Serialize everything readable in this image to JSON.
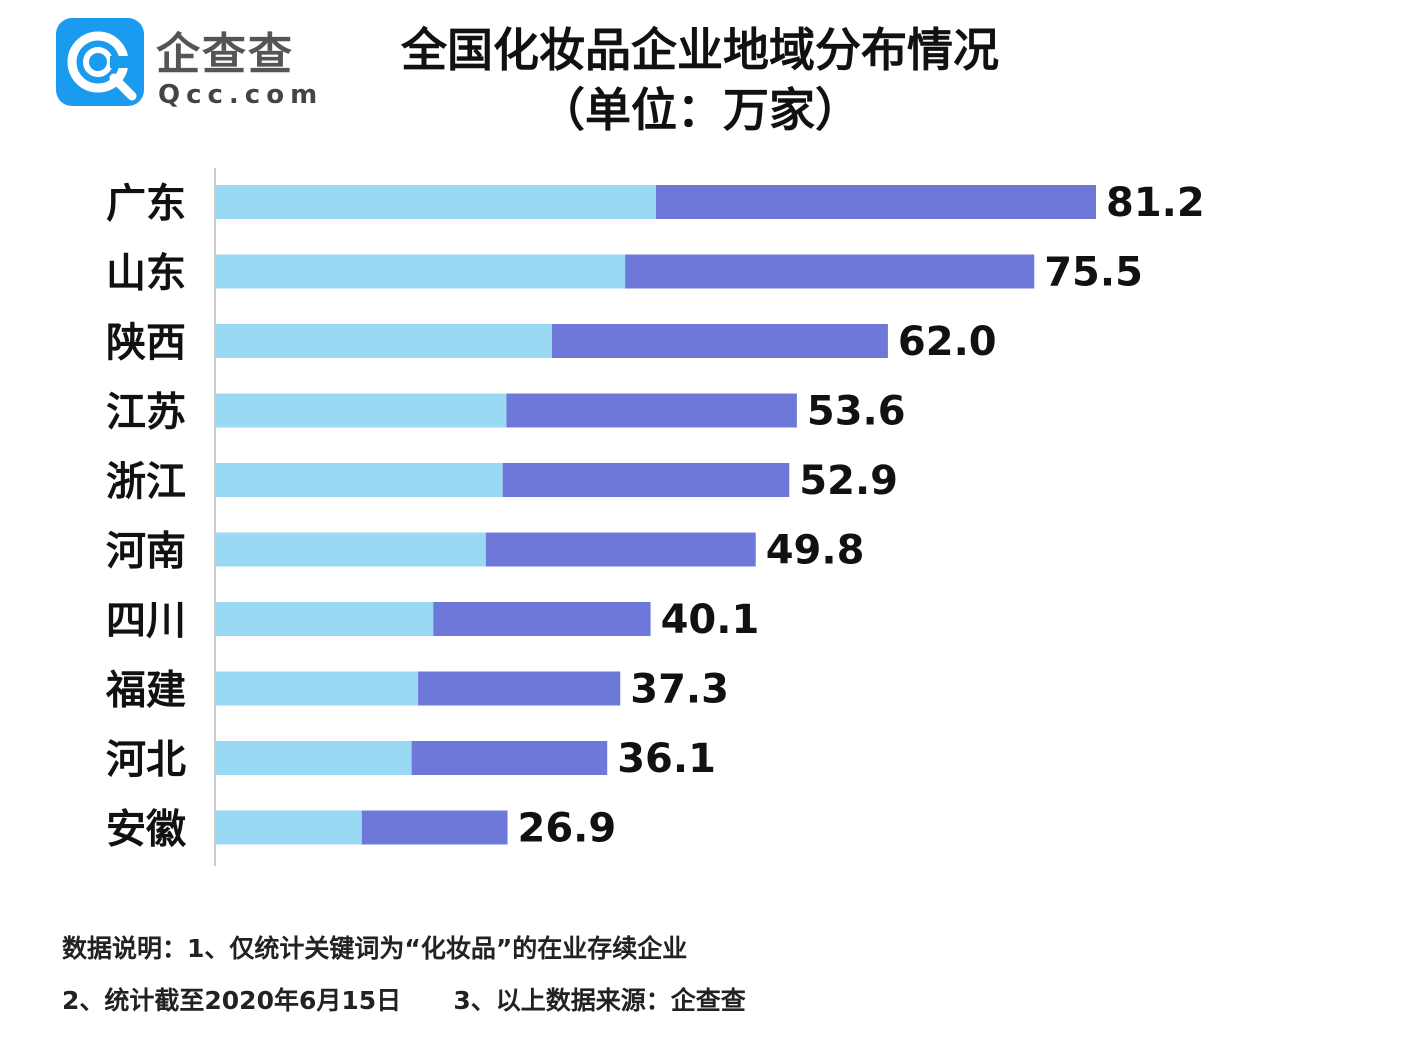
{
  "logo": {
    "name": "企查查",
    "domain": "Qcc.com",
    "icon": "qcc-logo-icon",
    "color": "#1a9bf0"
  },
  "title": "全国化妆品企业地域分布情况",
  "subtitle": "（单位：万家）",
  "chart_data": {
    "type": "bar",
    "orientation": "horizontal",
    "unit": "万家",
    "categories": [
      "广东",
      "山东",
      "陕西",
      "江苏",
      "浙江",
      "河南",
      "四川",
      "福建",
      "河北",
      "安徽"
    ],
    "values": [
      81.2,
      75.5,
      62.0,
      53.6,
      52.9,
      49.8,
      40.1,
      37.3,
      36.1,
      26.9
    ],
    "value_labels": [
      "81.2",
      "75.5",
      "62.0",
      "53.6",
      "52.9",
      "49.8",
      "40.1",
      "37.3",
      "36.1",
      "26.9"
    ],
    "xlim": [
      0,
      81.2
    ],
    "grid": false,
    "legend": "none",
    "colors": {
      "light": "#99d9f3",
      "dark": "#6e78d9",
      "axis": "#cccccc"
    }
  },
  "notes": {
    "line1": "数据说明：1、仅统计关键词为“化妆品”的在业存续企业",
    "line2": "2、统计截至2020年6月15日      3、以上数据来源：企查查"
  }
}
